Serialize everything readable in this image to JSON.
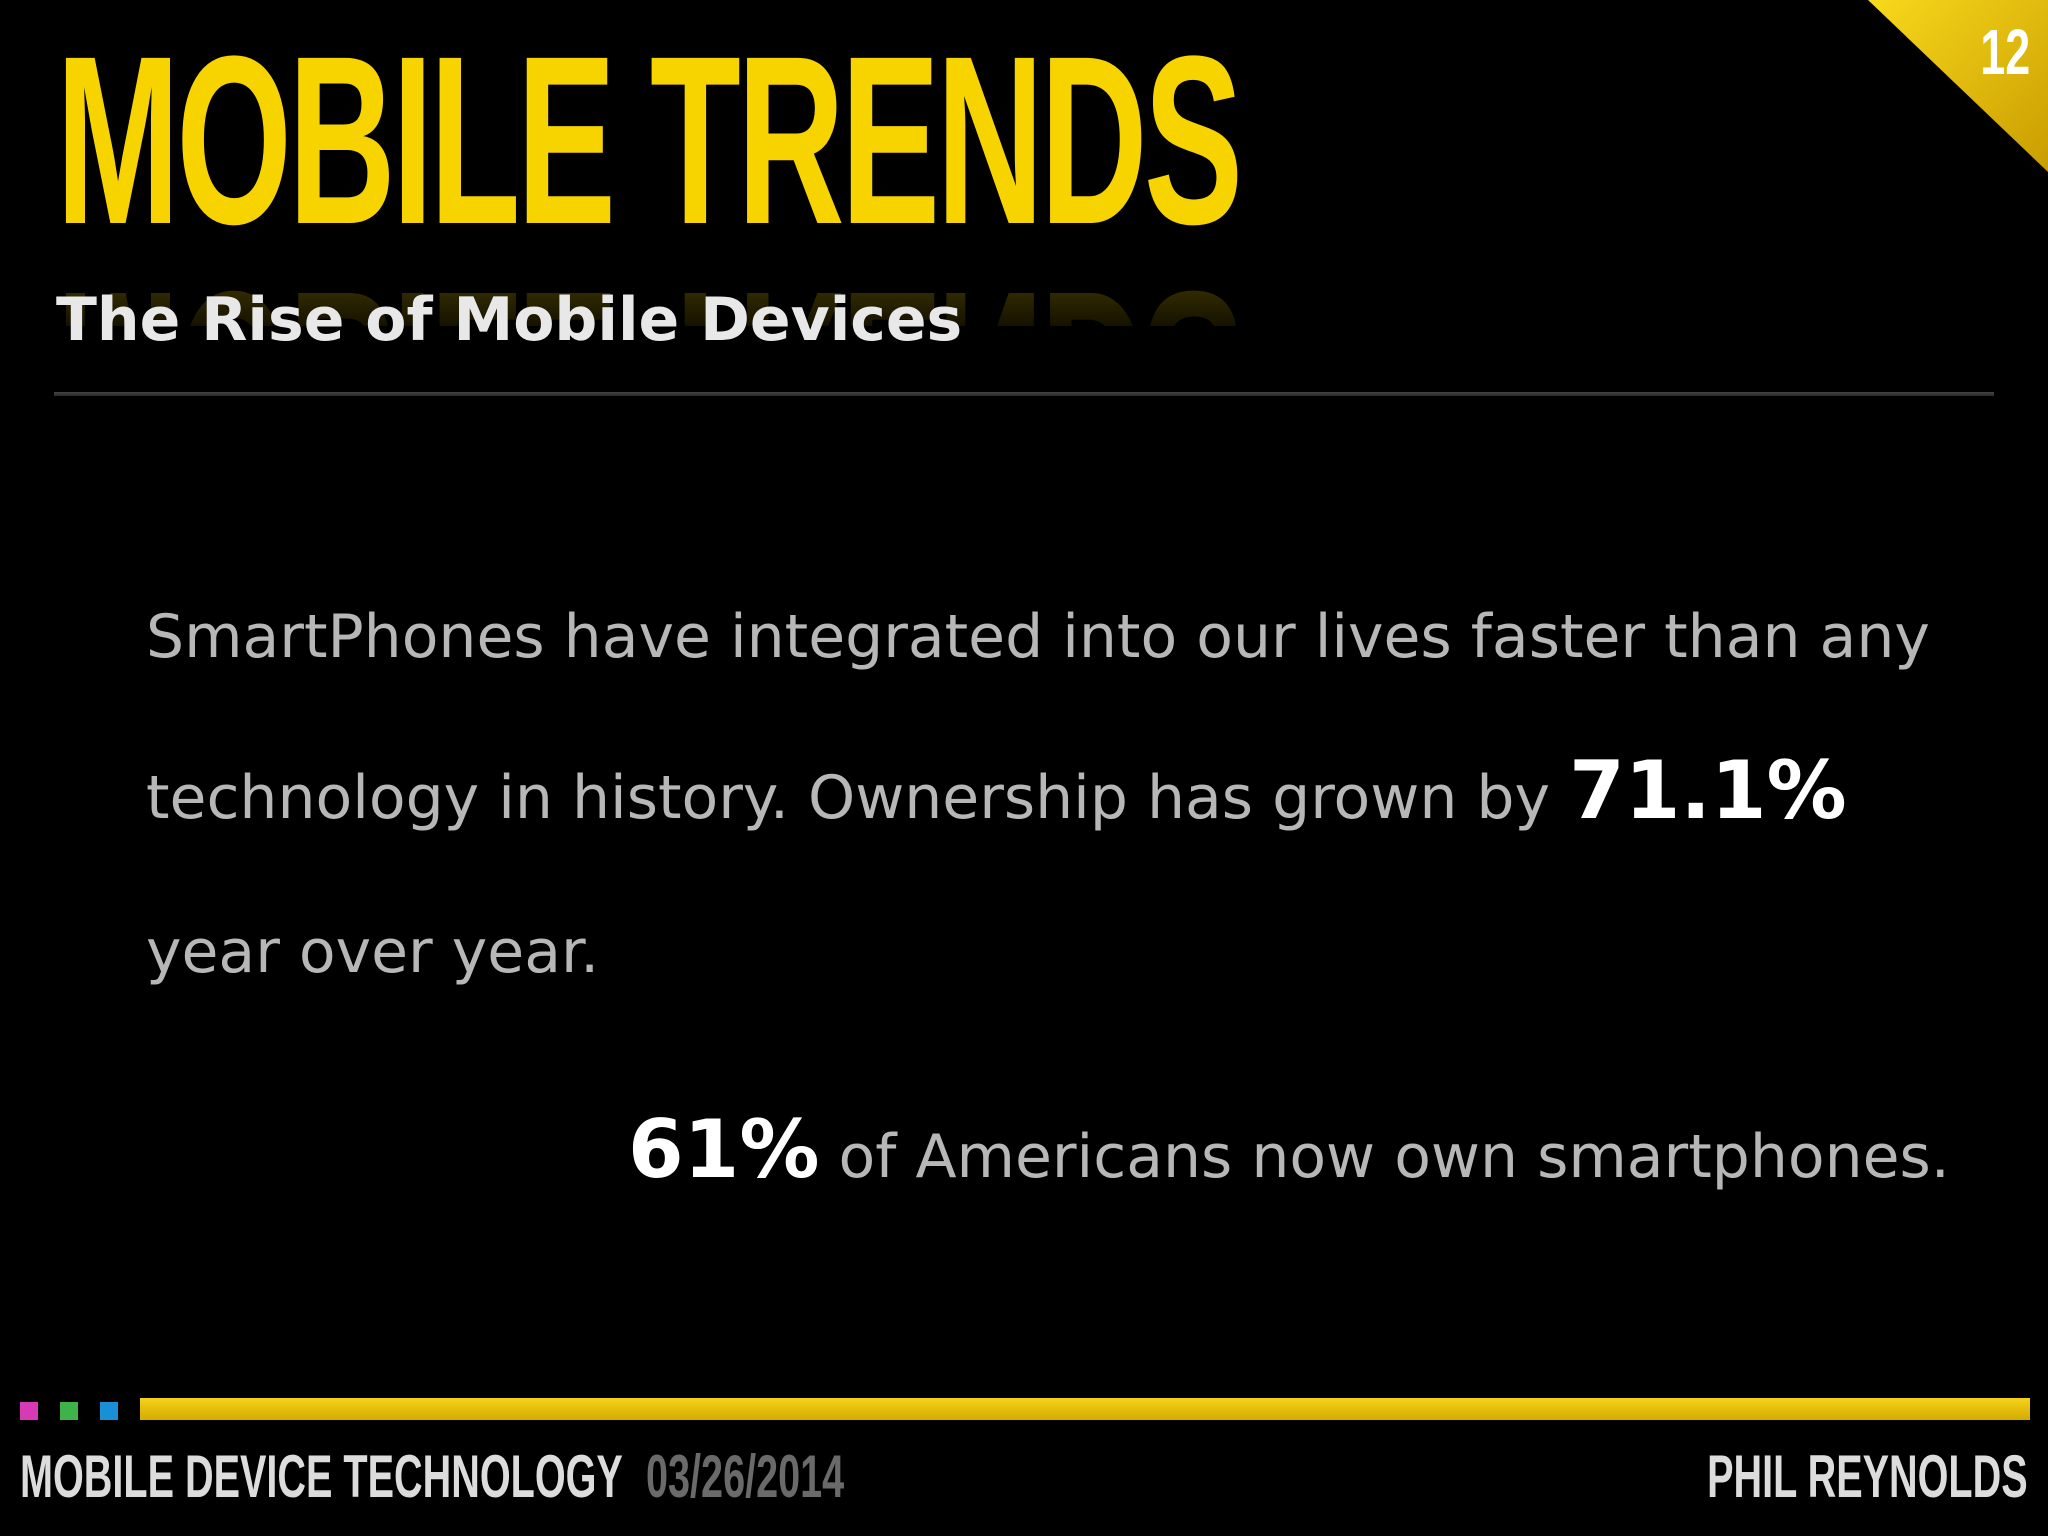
{
  "slide": {
    "title": "MOBILE TRENDS",
    "subtitle": "The Rise of Mobile Devices",
    "number": "12",
    "accent_color": "#f7d300"
  },
  "content": {
    "paragraph_part1": "SmartPhones have integrated into our lives faster than any technology in history. Ownership has grown by ",
    "paragraph_highlight": "71.1%",
    "paragraph_part2": " year over year.",
    "stat_highlight": "61%",
    "stat_text": " of Americans now own smartphones."
  },
  "footer": {
    "course": "MOBILE DEVICE TECHNOLOGY",
    "date": "03/26/2014",
    "author": "PHIL REYNOLDS",
    "square_colors": [
      "#d63ab5",
      "#3fb34a",
      "#1b8fd6"
    ]
  }
}
